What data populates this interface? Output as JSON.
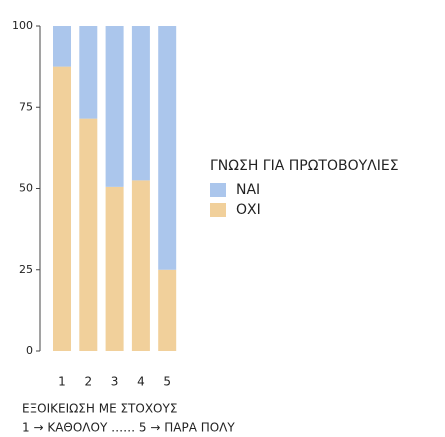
{
  "chart_data": {
    "type": "stacked_bar",
    "categories": [
      "1",
      "2",
      "3",
      "4",
      "5"
    ],
    "series": [
      {
        "name": "ΝΑΙ",
        "color": "#abc6ec",
        "values": [
          12.5,
          28.5,
          49.5,
          47.5,
          75
        ]
      },
      {
        "name": "ΟΧΙ",
        "color": "#f1d09b",
        "values": [
          87.5,
          71.5,
          50.5,
          52.5,
          25
        ]
      }
    ],
    "ylim": [
      0,
      100
    ],
    "yticks": [
      0,
      25,
      50,
      75,
      100
    ],
    "legend_title": "ΓΝΩΣΗ ΓΙΑ ΠΡΩΤΟΒΟΥΛΙΕΣ",
    "xlabel": [
      "ΕΞΟΙΚΕΙΩΣΗ ΜΕ ΣΤΟΧΟΥΣ",
      "1 → ΚΑΘΟΛΟΥ …… 5 → ΠΑΡΑ ΠΟΛΥ"
    ]
  }
}
